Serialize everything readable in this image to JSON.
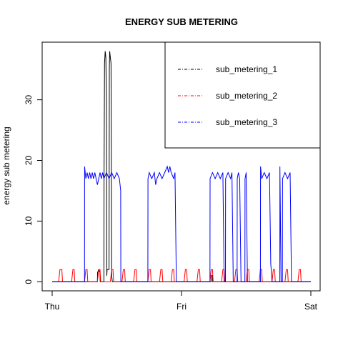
{
  "chart_data": {
    "type": "line",
    "title": "ENERGY SUB METERING",
    "xlabel": "",
    "ylabel": "energy sub metering",
    "x_ticks": [
      "Thu",
      "Fri",
      "Sat"
    ],
    "y_ticks": [
      0,
      10,
      20,
      30
    ],
    "xlim": [
      0,
      2
    ],
    "ylim": [
      -1.5,
      39.5
    ],
    "grid": false,
    "legend_position": "top-right",
    "series": [
      {
        "name": "sub_metering_1",
        "color": "#000000",
        "points": [
          [
            0,
            0
          ],
          [
            0.35,
            0
          ],
          [
            0.351,
            1.5
          ],
          [
            0.36,
            2
          ],
          [
            0.37,
            1.5
          ],
          [
            0.371,
            0
          ],
          [
            0.4,
            0
          ],
          [
            0.401,
            17
          ],
          [
            0.405,
            36
          ],
          [
            0.41,
            38
          ],
          [
            0.415,
            37
          ],
          [
            0.42,
            30
          ],
          [
            0.422,
            1
          ],
          [
            0.425,
            2
          ],
          [
            0.44,
            2
          ],
          [
            0.442,
            35
          ],
          [
            0.445,
            38
          ],
          [
            0.45,
            37
          ],
          [
            0.455,
            36
          ],
          [
            0.46,
            1
          ],
          [
            0.465,
            0
          ],
          [
            1.23,
            0
          ],
          [
            1.231,
            1
          ],
          [
            1.24,
            1
          ],
          [
            1.241,
            0
          ],
          [
            2,
            0
          ]
        ]
      },
      {
        "name": "sub_metering_2",
        "color": "#ff0000",
        "points": [
          [
            0,
            0
          ],
          [
            0.05,
            0
          ],
          [
            0.06,
            2
          ],
          [
            0.075,
            2
          ],
          [
            0.08,
            0
          ],
          [
            0.15,
            0
          ],
          [
            0.16,
            2
          ],
          [
            0.17,
            2
          ],
          [
            0.175,
            0
          ],
          [
            0.25,
            0
          ],
          [
            0.26,
            2
          ],
          [
            0.27,
            2
          ],
          [
            0.275,
            0
          ],
          [
            0.35,
            0
          ],
          [
            0.36,
            2
          ],
          [
            0.37,
            2
          ],
          [
            0.375,
            0
          ],
          [
            0.45,
            0
          ],
          [
            0.46,
            2
          ],
          [
            0.47,
            2
          ],
          [
            0.475,
            0
          ],
          [
            0.54,
            0
          ],
          [
            0.55,
            2
          ],
          [
            0.56,
            2
          ],
          [
            0.565,
            0
          ],
          [
            0.63,
            0
          ],
          [
            0.64,
            2
          ],
          [
            0.65,
            2
          ],
          [
            0.655,
            0
          ],
          [
            0.74,
            0
          ],
          [
            0.75,
            2
          ],
          [
            0.76,
            2
          ],
          [
            0.765,
            0
          ],
          [
            0.83,
            0
          ],
          [
            0.84,
            2
          ],
          [
            0.85,
            2
          ],
          [
            0.855,
            0
          ],
          [
            0.92,
            0
          ],
          [
            0.93,
            2
          ],
          [
            0.94,
            2
          ],
          [
            0.945,
            0
          ],
          [
            1.02,
            0
          ],
          [
            1.03,
            2
          ],
          [
            1.04,
            2
          ],
          [
            1.045,
            0
          ],
          [
            1.12,
            0
          ],
          [
            1.13,
            2
          ],
          [
            1.14,
            2
          ],
          [
            1.145,
            0
          ],
          [
            1.22,
            0
          ],
          [
            1.23,
            2
          ],
          [
            1.24,
            2
          ],
          [
            1.245,
            0
          ],
          [
            1.31,
            0
          ],
          [
            1.32,
            2
          ],
          [
            1.33,
            2
          ],
          [
            1.335,
            0
          ],
          [
            1.41,
            0
          ],
          [
            1.42,
            2
          ],
          [
            1.43,
            2
          ],
          [
            1.435,
            0
          ],
          [
            1.5,
            0
          ],
          [
            1.51,
            2
          ],
          [
            1.52,
            2
          ],
          [
            1.525,
            0
          ],
          [
            1.6,
            0
          ],
          [
            1.61,
            2
          ],
          [
            1.62,
            2
          ],
          [
            1.625,
            0
          ],
          [
            1.7,
            0
          ],
          [
            1.71,
            2
          ],
          [
            1.72,
            2
          ],
          [
            1.725,
            0
          ],
          [
            1.8,
            0
          ],
          [
            1.81,
            2
          ],
          [
            1.82,
            2
          ],
          [
            1.825,
            0
          ],
          [
            1.9,
            0
          ],
          [
            1.91,
            2
          ],
          [
            1.92,
            2
          ],
          [
            1.925,
            0
          ],
          [
            2,
            0
          ]
        ]
      },
      {
        "name": "sub_metering_3",
        "color": "#0000ff",
        "points": [
          [
            0,
            0
          ],
          [
            0.25,
            0
          ],
          [
            0.251,
            19
          ],
          [
            0.26,
            17
          ],
          [
            0.27,
            18
          ],
          [
            0.28,
            17
          ],
          [
            0.29,
            18
          ],
          [
            0.3,
            17
          ],
          [
            0.31,
            18
          ],
          [
            0.32,
            17
          ],
          [
            0.33,
            18
          ],
          [
            0.34,
            17
          ],
          [
            0.35,
            16
          ],
          [
            0.36,
            17
          ],
          [
            0.37,
            18
          ],
          [
            0.38,
            17
          ],
          [
            0.39,
            18
          ],
          [
            0.4,
            17
          ],
          [
            0.42,
            18
          ],
          [
            0.44,
            17
          ],
          [
            0.46,
            18
          ],
          [
            0.48,
            17
          ],
          [
            0.5,
            18
          ],
          [
            0.52,
            17
          ],
          [
            0.525,
            16
          ],
          [
            0.53,
            15
          ],
          [
            0.531,
            0
          ],
          [
            0.74,
            0
          ],
          [
            0.741,
            17
          ],
          [
            0.75,
            18
          ],
          [
            0.77,
            17
          ],
          [
            0.79,
            18
          ],
          [
            0.8,
            16
          ],
          [
            0.81,
            17
          ],
          [
            0.83,
            18
          ],
          [
            0.85,
            17
          ],
          [
            0.87,
            18
          ],
          [
            0.89,
            19
          ],
          [
            0.9,
            18
          ],
          [
            0.91,
            19
          ],
          [
            0.92,
            18
          ],
          [
            0.94,
            17
          ],
          [
            0.95,
            18
          ],
          [
            0.96,
            0
          ],
          [
            1.22,
            0
          ],
          [
            1.221,
            17
          ],
          [
            1.24,
            18
          ],
          [
            1.26,
            17
          ],
          [
            1.28,
            18
          ],
          [
            1.3,
            17
          ],
          [
            1.32,
            18
          ],
          [
            1.33,
            0
          ],
          [
            1.34,
            0
          ],
          [
            1.341,
            17
          ],
          [
            1.36,
            18
          ],
          [
            1.38,
            17
          ],
          [
            1.39,
            18
          ],
          [
            1.4,
            0
          ],
          [
            1.43,
            0
          ],
          [
            1.431,
            17
          ],
          [
            1.44,
            18
          ],
          [
            1.45,
            17
          ],
          [
            1.46,
            0
          ],
          [
            1.49,
            0
          ],
          [
            1.491,
            17
          ],
          [
            1.5,
            18
          ],
          [
            1.51,
            0
          ],
          [
            1.61,
            0
          ],
          [
            1.611,
            19
          ],
          [
            1.62,
            17
          ],
          [
            1.64,
            18
          ],
          [
            1.66,
            17
          ],
          [
            1.68,
            18
          ],
          [
            1.69,
            3
          ],
          [
            1.7,
            0
          ],
          [
            1.76,
            0
          ],
          [
            1.761,
            19
          ],
          [
            1.77,
            0
          ],
          [
            1.78,
            0
          ],
          [
            1.781,
            17
          ],
          [
            1.8,
            18
          ],
          [
            1.82,
            17
          ],
          [
            1.84,
            18
          ],
          [
            1.85,
            0
          ],
          [
            2,
            0
          ]
        ]
      }
    ]
  }
}
